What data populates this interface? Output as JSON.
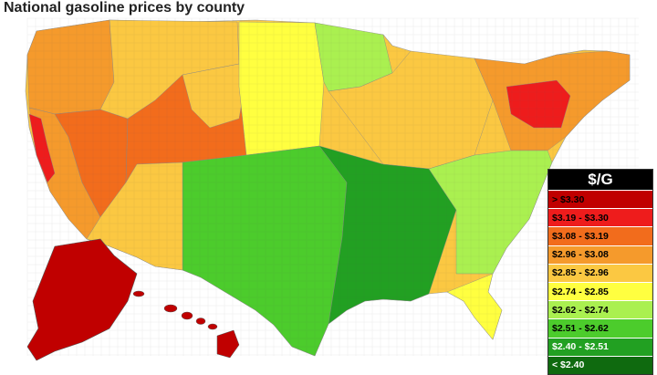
{
  "title": "National gasoline prices by county",
  "legend": {
    "unit": "$/G",
    "bins": [
      {
        "label": "> $3.30",
        "color": "#c00000"
      },
      {
        "label": "$3.19 - $3.30",
        "color": "#ee1c1c"
      },
      {
        "label": "$3.08 - $3.19",
        "color": "#f26c1c"
      },
      {
        "label": "$2.96 - $3.08",
        "color": "#f59a2c"
      },
      {
        "label": "$2.85 - $2.96",
        "color": "#fbc842"
      },
      {
        "label": "$2.74 - $2.85",
        "color": "#ffff40"
      },
      {
        "label": "$2.62 - $2.74",
        "color": "#aaf050"
      },
      {
        "label": "$2.51 - $2.62",
        "color": "#4ccc2c"
      },
      {
        "label": "$2.40 - $2.51",
        "color": "#22a022"
      },
      {
        "label": "< $2.40",
        "color": "#0f6a0f"
      }
    ]
  },
  "map_regions": [
    {
      "name": "pacific-northwest",
      "bin": 3
    },
    {
      "name": "california",
      "bin": 3
    },
    {
      "name": "california-coast",
      "bin": 1
    },
    {
      "name": "nevada",
      "bin": 2
    },
    {
      "name": "idaho-montana",
      "bin": 4
    },
    {
      "name": "utah-colorado",
      "bin": 2
    },
    {
      "name": "wyoming",
      "bin": 4
    },
    {
      "name": "northern-plains",
      "bin": 5
    },
    {
      "name": "minnesota",
      "bin": 6
    },
    {
      "name": "great-lakes",
      "bin": 4
    },
    {
      "name": "northeast",
      "bin": 3
    },
    {
      "name": "new-york",
      "bin": 1
    },
    {
      "name": "texas-oklahoma",
      "bin": 7
    },
    {
      "name": "gulf-south",
      "bin": 8
    },
    {
      "name": "southeast",
      "bin": 6
    },
    {
      "name": "florida",
      "bin": 5
    },
    {
      "name": "southwest",
      "bin": 4
    },
    {
      "name": "alaska",
      "bin": 0
    },
    {
      "name": "hawaii",
      "bin": 0
    }
  ]
}
